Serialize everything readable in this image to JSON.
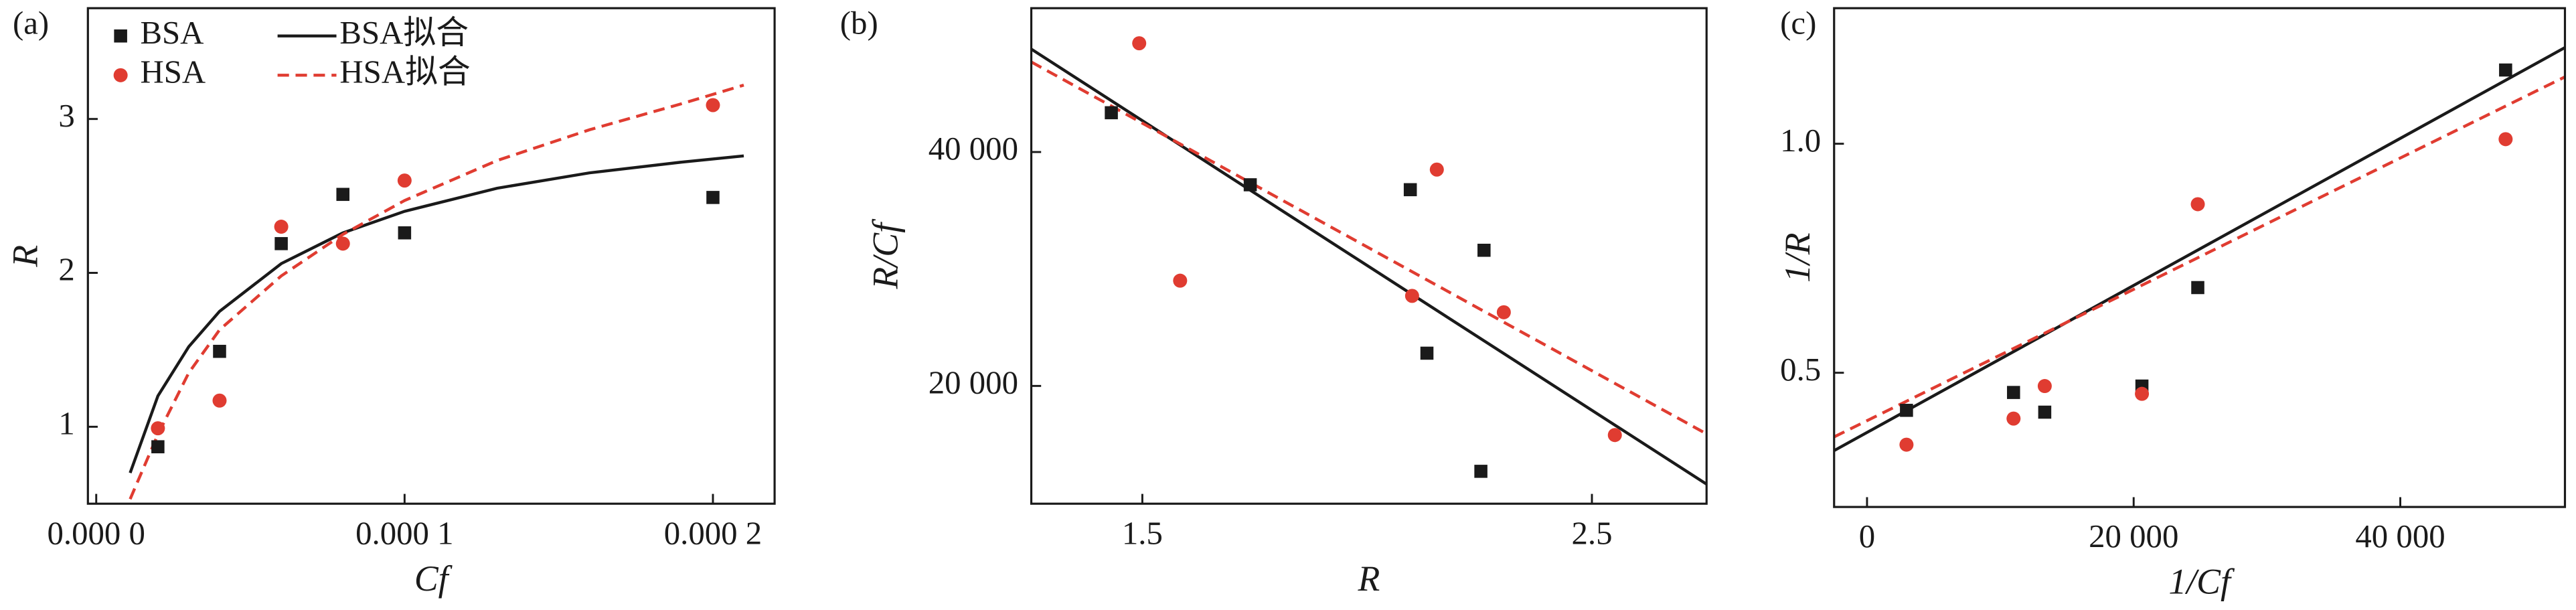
{
  "chart_data": [
    {
      "type": "scatter",
      "panel_label": "(a)",
      "xlabel": "Cf",
      "ylabel": "R",
      "legend": "upper left",
      "xlim": [
        -2.7e-06,
        0.00022
      ],
      "ylim": [
        0.5,
        3.72
      ],
      "xticks": [
        {
          "value": 0,
          "label": "0.000 0"
        },
        {
          "value": 0.0001,
          "label": "0.000 1"
        },
        {
          "value": 0.0002,
          "label": "0.000 2"
        }
      ],
      "yticks": [
        1,
        2,
        3
      ],
      "series": [
        {
          "name": "BSA",
          "color": "#1a1a1a",
          "style": "square",
          "x": [
            2e-05,
            4e-05,
            6e-05,
            8e-05,
            0.0001,
            0.0002
          ],
          "values": [
            0.87,
            1.49,
            2.19,
            2.51,
            2.26,
            2.49
          ]
        },
        {
          "name": "HSA",
          "color": "#e03c31",
          "style": "circle",
          "x": [
            2e-05,
            4e-05,
            6e-05,
            8e-05,
            0.0001,
            0.0002
          ],
          "values": [
            0.99,
            1.17,
            2.3,
            2.19,
            2.6,
            3.09
          ]
        },
        {
          "name": "BSA拟合",
          "color": "#1a1a1a",
          "style": "solid",
          "x": [
            1.1e-05,
            2e-05,
            3e-05,
            4e-05,
            6e-05,
            8e-05,
            0.0001,
            0.00013,
            0.00016,
            0.00019,
            0.00021
          ],
          "values": [
            0.7,
            1.2,
            1.52,
            1.75,
            2.06,
            2.26,
            2.4,
            2.55,
            2.65,
            2.72,
            2.76
          ]
        },
        {
          "name": "HSA拟合",
          "color": "#e03c31",
          "style": "dashed",
          "x": [
            1.1e-05,
            2e-05,
            3e-05,
            4e-05,
            6e-05,
            8e-05,
            0.0001,
            0.00013,
            0.00016,
            0.00019,
            0.00021
          ],
          "values": [
            0.53,
            0.95,
            1.35,
            1.63,
            1.98,
            2.25,
            2.47,
            2.73,
            2.93,
            3.1,
            3.22
          ]
        }
      ]
    },
    {
      "type": "scatter",
      "panel_label": "(b)",
      "xlabel": "R",
      "ylabel": "R/Cf",
      "xlim": [
        1.253,
        2.755
      ],
      "ylim": [
        9930,
        52300
      ],
      "xticks": [
        1.5,
        2.5
      ],
      "yticks": [
        {
          "value": 20000,
          "label": "20 000"
        },
        {
          "value": 40000,
          "label": "40 000"
        }
      ],
      "series": [
        {
          "color": "#1a1a1a",
          "style": "square",
          "x": [
            1.431,
            1.74,
            2.096,
            2.133,
            2.26,
            2.253
          ],
          "values": [
            43360,
            37200,
            36780,
            22800,
            31600,
            12700
          ]
        },
        {
          "color": "#e03c31",
          "style": "circle",
          "x": [
            1.493,
            1.584,
            2.155,
            2.1,
            2.304,
            2.551
          ],
          "values": [
            49300,
            29000,
            38500,
            27700,
            26300,
            15800
          ]
        },
        {
          "color": "#1a1a1a",
          "style": "solid",
          "x": [
            1.253,
            2.755
          ],
          "values": [
            48800,
            11600
          ]
        },
        {
          "color": "#e03c31",
          "style": "dashed",
          "x": [
            1.253,
            2.755
          ],
          "values": [
            47700,
            15900
          ]
        }
      ]
    },
    {
      "type": "scatter",
      "panel_label": "(c)",
      "xlabel": "1/Cf",
      "ylabel": "1/R",
      "xlim": [
        -2470,
        52350
      ],
      "ylim": [
        0.207,
        1.296
      ],
      "xticks": [
        0,
        {
          "value": 20000,
          "label": "20 000"
        },
        {
          "value": 40000,
          "label": "40 000"
        }
      ],
      "yticks": [
        0.5,
        {
          "value": 1,
          "label": "1.0"
        }
      ],
      "series": [
        {
          "color": "#1a1a1a",
          "style": "square",
          "x": [
            2960,
            10990,
            13330,
            20620,
            24810,
            47900
          ],
          "values": [
            0.418,
            0.457,
            0.414,
            0.471,
            0.686,
            1.161
          ]
        },
        {
          "color": "#e03c31",
          "style": "circle",
          "x": [
            2960,
            10990,
            13330,
            20620,
            24810,
            47900
          ],
          "values": [
            0.343,
            0.4,
            0.471,
            0.454,
            0.868,
            1.01
          ]
        },
        {
          "color": "#1a1a1a",
          "style": "solid",
          "x": [
            -2470,
            52350
          ],
          "values": [
            0.33,
            1.21
          ]
        },
        {
          "color": "#e03c31",
          "style": "dashed",
          "x": [
            -2470,
            52350
          ],
          "values": [
            0.36,
            1.146
          ]
        }
      ]
    }
  ]
}
